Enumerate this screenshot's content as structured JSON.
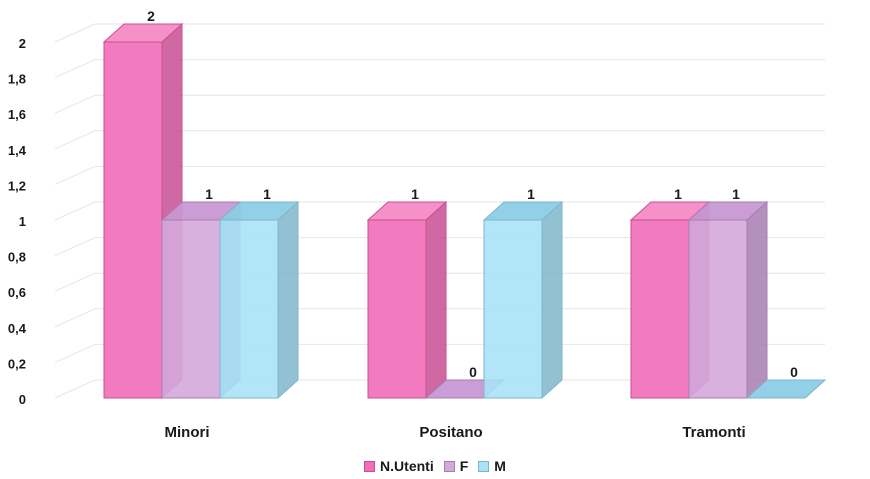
{
  "chart_data": {
    "type": "bar",
    "style": "3d-clustered",
    "categories": [
      "Minori",
      "Positano",
      "Tramonti"
    ],
    "series": [
      {
        "name": "N.Utenti",
        "values": [
          2,
          1,
          1
        ],
        "color": "#f06db7",
        "side": "#c84f93",
        "top": "#f58ac6"
      },
      {
        "name": "F",
        "values": [
          1,
          0,
          1
        ],
        "color": "#d4a9db",
        "side": "#a77db1",
        "top": "#c898d4"
      },
      {
        "name": "M",
        "values": [
          1,
          1,
          0
        ],
        "color": "#a9e2f6",
        "side": "#7fb6cb",
        "top": "#8ccde6"
      }
    ],
    "yticks": [
      "0",
      "0,2",
      "0,4",
      "0,6",
      "0,8",
      "1",
      "1,2",
      "1,4",
      "1,6",
      "1,8",
      "2"
    ],
    "ylim": [
      0,
      2
    ],
    "grid": true,
    "legend_position": "bottom"
  }
}
